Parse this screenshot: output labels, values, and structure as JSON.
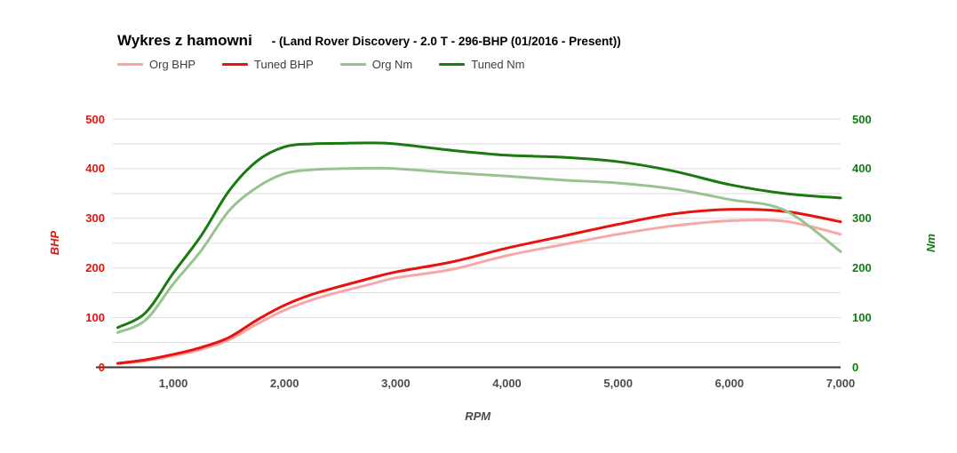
{
  "header": {
    "title": "Wykres z hamowni",
    "subtitle": "- (Land Rover Discovery - 2.0 T - 296-BHP (01/2016 - Present))"
  },
  "legend": [
    {
      "label": "Org BHP",
      "color": "#f7a8a6"
    },
    {
      "label": "Tuned BHP",
      "color": "#e8120e"
    },
    {
      "label": "Org Nm",
      "color": "#99c291"
    },
    {
      "label": "Tuned Nm",
      "color": "#187a10"
    }
  ],
  "axes": {
    "left_title": "BHP",
    "right_title": "Nm",
    "x_title": "RPM",
    "left_tick_labels": [
      "0",
      "100",
      "200",
      "300",
      "400",
      "500"
    ],
    "right_tick_labels": [
      "0",
      "100",
      "200",
      "300",
      "400",
      "500"
    ],
    "x_tick_labels": [
      "1,000",
      "2,000",
      "3,000",
      "4,000",
      "5,000",
      "6,000",
      "7,000"
    ]
  },
  "chart_data": {
    "type": "line",
    "title": "Wykres z hamowni - (Land Rover Discovery - 2.0 T - 296-BHP (01/2016 - Present))",
    "xlabel": "RPM",
    "ylabel_left": "BHP",
    "ylabel_right": "Nm",
    "xlim": [
      500,
      7000
    ],
    "ylim_left": [
      0,
      500
    ],
    "ylim_right": [
      0,
      500
    ],
    "x_tick_values": [
      1000,
      2000,
      3000,
      4000,
      5000,
      6000,
      7000
    ],
    "y_tick_values": [
      0,
      100,
      200,
      300,
      400,
      500
    ],
    "grid": "horizontal gridlines every 50 units",
    "legend_position": "top-left",
    "x": [
      500,
      750,
      1000,
      1250,
      1500,
      1750,
      2000,
      2250,
      2500,
      2750,
      3000,
      3500,
      4000,
      4500,
      5000,
      5500,
      6000,
      6500,
      7000
    ],
    "series": [
      {
        "name": "Org BHP",
        "axis": "left",
        "color": "#f7a8a6",
        "values": [
          7,
          13,
          23,
          36,
          55,
          87,
          115,
          136,
          152,
          166,
          180,
          197,
          225,
          247,
          268,
          285,
          295,
          294,
          268
        ]
      },
      {
        "name": "Tuned BHP",
        "axis": "left",
        "color": "#e8120e",
        "values": [
          8,
          15,
          26,
          40,
          60,
          95,
          125,
          147,
          163,
          178,
          192,
          212,
          240,
          264,
          288,
          309,
          318,
          314,
          293
        ]
      },
      {
        "name": "Org Nm",
        "axis": "right",
        "color": "#99c291",
        "values": [
          70,
          95,
          168,
          235,
          315,
          362,
          390,
          398,
          400,
          401,
          400,
          392,
          385,
          377,
          371,
          359,
          338,
          316,
          233
        ]
      },
      {
        "name": "Tuned Nm",
        "axis": "right",
        "color": "#187a10",
        "values": [
          80,
          110,
          190,
          265,
          355,
          415,
          444,
          450,
          451,
          452,
          450,
          437,
          427,
          423,
          414,
          395,
          368,
          350,
          341
        ]
      }
    ]
  },
  "colors": {
    "background": "#ffffff",
    "gridline": "#dcdcdc",
    "axis_line": "#333333",
    "left_axis_text": "#e8120e",
    "right_axis_text": "#0e7c0e",
    "x_axis_text": "#4c4c4c",
    "title_text": "#000000",
    "legend_text": "#3d3d3d"
  }
}
